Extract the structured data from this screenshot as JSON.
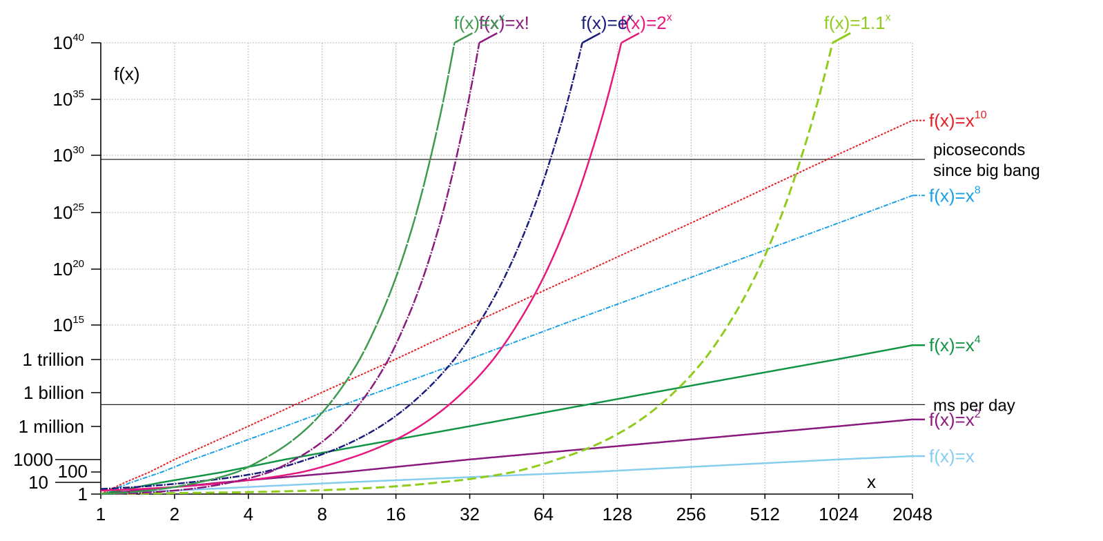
{
  "chart_data": {
    "type": "line",
    "xlabel": "x",
    "ylabel": "f(x)",
    "x_scale": "log2",
    "y_scale": "log10",
    "grid": true,
    "xlim": [
      1,
      2048
    ],
    "ylim": [
      1,
      1e+40
    ],
    "x_ticks": [
      1,
      2,
      4,
      8,
      16,
      32,
      64,
      128,
      256,
      512,
      1024,
      2048
    ],
    "x_tick_labels": [
      "1",
      "2",
      "4",
      "8",
      "16",
      "32",
      "64",
      "128",
      "256",
      "512",
      "1024",
      "2048"
    ],
    "y_ticks": [
      {
        "value": 1,
        "label": "1",
        "sup": ""
      },
      {
        "value": 10,
        "label": "10",
        "sup": ""
      },
      {
        "value": 100,
        "label": "100",
        "sup": ""
      },
      {
        "value": 1000,
        "label": "1000",
        "sup": ""
      },
      {
        "value": 1000000.0,
        "label": "1 million",
        "sup": ""
      },
      {
        "value": 1000000000.0,
        "label": "1 billion",
        "sup": ""
      },
      {
        "value": 1000000000000.0,
        "label": "1 trillion",
        "sup": ""
      },
      {
        "value": 1000000000000000.0,
        "label": "10",
        "sup": "15"
      },
      {
        "value": 1e+20,
        "label": "10",
        "sup": "20"
      },
      {
        "value": 1e+25,
        "label": "10",
        "sup": "25"
      },
      {
        "value": 1e+30,
        "label": "10",
        "sup": "30"
      },
      {
        "value": 1e+35,
        "label": "10",
        "sup": "35"
      },
      {
        "value": 1e+40,
        "label": "10",
        "sup": "40"
      }
    ],
    "reference_lines": [
      {
        "value": 86400000,
        "label_lines": [
          "ms per day"
        ]
      },
      {
        "value": 4.35e+29,
        "label_lines": [
          "picoseconds",
          "since big bang"
        ]
      }
    ],
    "series": [
      {
        "name": "f(x)=x",
        "base": "f(x)=x",
        "sup": "",
        "kind": "power",
        "k": 1,
        "color": "#87cdf0",
        "dash": "",
        "width": 2.5,
        "label_pos": "right",
        "label_font": "serif"
      },
      {
        "name": "f(x)=x²",
        "base": "f(x)=x",
        "sup": "2",
        "kind": "power",
        "k": 2,
        "color": "#8b1a7e",
        "dash": "",
        "width": 2.5,
        "label_pos": "right"
      },
      {
        "name": "f(x)=x⁴",
        "base": "f(x)=x",
        "sup": "4",
        "kind": "power",
        "k": 4,
        "color": "#129446",
        "dash": "",
        "width": 2.5,
        "label_pos": "right"
      },
      {
        "name": "f(x)=x⁸",
        "base": "f(x)=x",
        "sup": "8",
        "kind": "power",
        "k": 8,
        "color": "#1aa0e6",
        "dash": "7 2 2 2",
        "width": 2,
        "label_pos": "right"
      },
      {
        "name": "f(x)=x¹⁰",
        "base": "f(x)=x",
        "sup": "10",
        "kind": "power",
        "k": 10,
        "color": "#e41e24",
        "dash": "3 2",
        "width": 2,
        "label_pos": "right"
      },
      {
        "name": "f(x)=1.1ˣ",
        "base": "f(x)=1.1",
        "sup": "x",
        "kind": "exp",
        "b": 1.1,
        "color": "#8fcc1e",
        "dash": "13 6",
        "width": 3,
        "label_pos": "top"
      },
      {
        "name": "f(x)=2ˣ",
        "base": "f(x)=2",
        "sup": "x",
        "kind": "exp",
        "b": 2,
        "color": "#e6177f",
        "dash": "",
        "width": 2.5,
        "label_pos": "top"
      },
      {
        "name": "f(x)=eˣ",
        "base": "f(x)=e",
        "sup": "x",
        "kind": "exp",
        "b": 2.718281828,
        "color": "#1b1b7e",
        "dash": "10 2 2 2",
        "width": 2.5,
        "label_pos": "top"
      },
      {
        "name": "f(x)=x!",
        "base": "f(x)=x!",
        "sup": "",
        "kind": "factorial",
        "color": "#8b1a7e",
        "dash": "14 2 2 2",
        "width": 2.5,
        "label_pos": "top"
      },
      {
        "name": "f(x)=xˣ",
        "base": "f(x)=x",
        "sup": "x",
        "kind": "selfpow",
        "color": "#3d9a4f",
        "dash": "40 2",
        "width": 2.5,
        "label_pos": "top"
      }
    ]
  }
}
